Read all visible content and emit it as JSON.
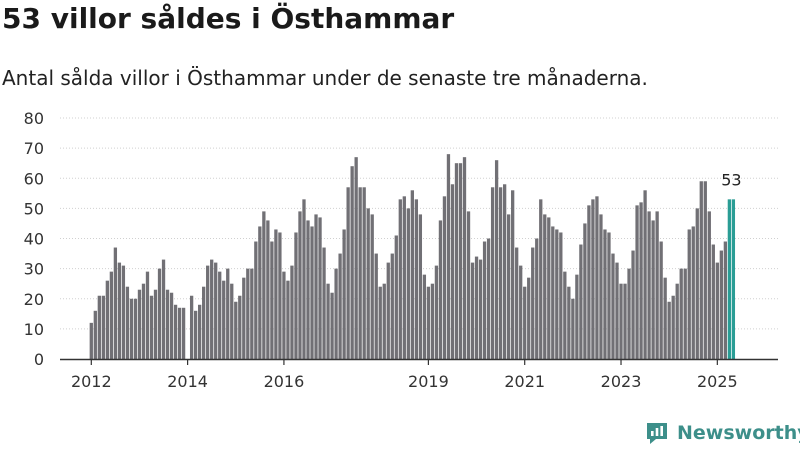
{
  "header": {
    "title": "53 villor såldes i Östhammar",
    "subtitle": "Antal sålda villor i Östhammar under de senaste tre månaderna."
  },
  "brand": {
    "name": "Newsworthy",
    "icon": "newsworthy-logo-icon"
  },
  "colors": {
    "bar": "#717075",
    "highlight": "#2a9d95",
    "axis": "#333333",
    "grid": "#d0d0d0",
    "brand": "#3d8f8a"
  },
  "chart_data": {
    "type": "bar",
    "title": "",
    "xlabel": "",
    "ylabel": "",
    "ylim": [
      0,
      80
    ],
    "yticks": [
      0,
      10,
      20,
      30,
      40,
      50,
      60,
      70,
      80
    ],
    "grid": true,
    "start": "2012-03",
    "xtick_labels": [
      {
        "label": "2012",
        "month": "2012-03"
      },
      {
        "label": "2014",
        "month": "2014-03"
      },
      {
        "label": "2016",
        "month": "2016-03"
      },
      {
        "label": "2019",
        "month": "2019-03"
      },
      {
        "label": "2021",
        "month": "2021-03"
      },
      {
        "label": "2023",
        "month": "2023-03"
      },
      {
        "label": "2025",
        "month": "2025-03"
      }
    ],
    "highlight_label": "53",
    "values": [
      12,
      16,
      21,
      21,
      26,
      29,
      37,
      32,
      31,
      24,
      20,
      20,
      23,
      25,
      29,
      21,
      23,
      30,
      33,
      23,
      22,
      18,
      17,
      17,
      0,
      21,
      16,
      18,
      24,
      31,
      33,
      32,
      29,
      26,
      30,
      25,
      19,
      21,
      27,
      30,
      30,
      39,
      44,
      49,
      46,
      39,
      43,
      42,
      29,
      26,
      31,
      42,
      49,
      53,
      46,
      44,
      48,
      47,
      37,
      25,
      22,
      30,
      35,
      43,
      57,
      64,
      67,
      57,
      57,
      50,
      48,
      35,
      24,
      25,
      32,
      35,
      41,
      53,
      54,
      50,
      56,
      53,
      48,
      28,
      24,
      25,
      31,
      46,
      54,
      68,
      58,
      65,
      65,
      67,
      49,
      32,
      34,
      33,
      39,
      40,
      57,
      66,
      57,
      58,
      48,
      56,
      37,
      31,
      24,
      27,
      37,
      40,
      53,
      48,
      47,
      44,
      43,
      42,
      29,
      24,
      20,
      28,
      38,
      45,
      51,
      53,
      54,
      48,
      43,
      42,
      35,
      32,
      25,
      25,
      30,
      36,
      51,
      52,
      56,
      49,
      46,
      49,
      39,
      27,
      19,
      21,
      25,
      30,
      30,
      43,
      44,
      50,
      59,
      59,
      49,
      38,
      32,
      36,
      39,
      53,
      53
    ]
  }
}
